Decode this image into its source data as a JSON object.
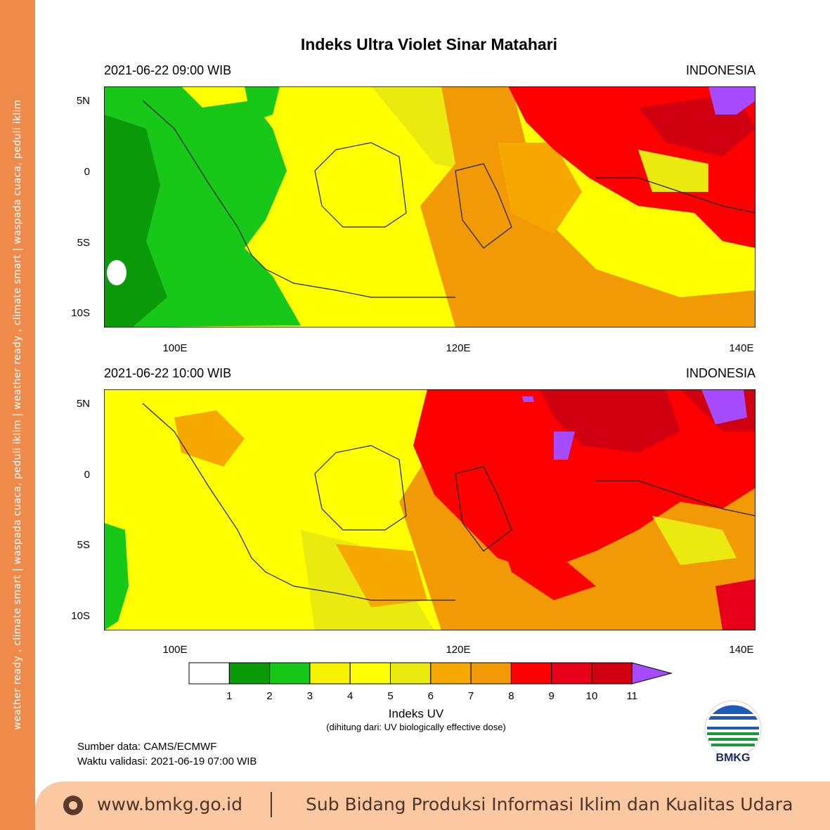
{
  "title": "Indeks Ultra Violet Sinar Matahari",
  "maps": [
    {
      "time": "2021-06-22  09:00 WIB",
      "region": "INDONESIA"
    },
    {
      "time": "2021-06-22  10:00 WIB",
      "region": "INDONESIA"
    }
  ],
  "axes": {
    "lat_ticks": [
      "5N",
      "0",
      "5S",
      "10S"
    ],
    "lon_ticks": [
      "100E",
      "120E",
      "140E"
    ]
  },
  "colorbar": {
    "ticks": [
      "1",
      "2",
      "3",
      "4",
      "5",
      "6",
      "7",
      "8",
      "9",
      "10",
      "11"
    ],
    "colors": [
      "#ffffff",
      "#0a9a0a",
      "#18c818",
      "#f6f200",
      "#ffff00",
      "#eaea10",
      "#f7a800",
      "#f29a05",
      "#ff0000",
      "#e8001a",
      "#d00010",
      "#a64bff"
    ],
    "label": "Indeks UV",
    "note": "(dihitung dari: UV biologically effective dose)"
  },
  "source": {
    "line1": "Sumber data: CAMS/ECMWF",
    "line2": "Waktu validasi: 2021-06-19 07:00 WIB"
  },
  "logo_text": "BMKG",
  "sidebar_text": "weather ready , climate smart  |  waspada cuaca, peduli iklim  |  weather ready , climate smart  |  waspada cuaca, peduli iklim",
  "footer": {
    "url": "www.bmkg.go.id",
    "desc": "Sub Bidang Produksi Informasi Iklim dan Kualitas Udara"
  }
}
